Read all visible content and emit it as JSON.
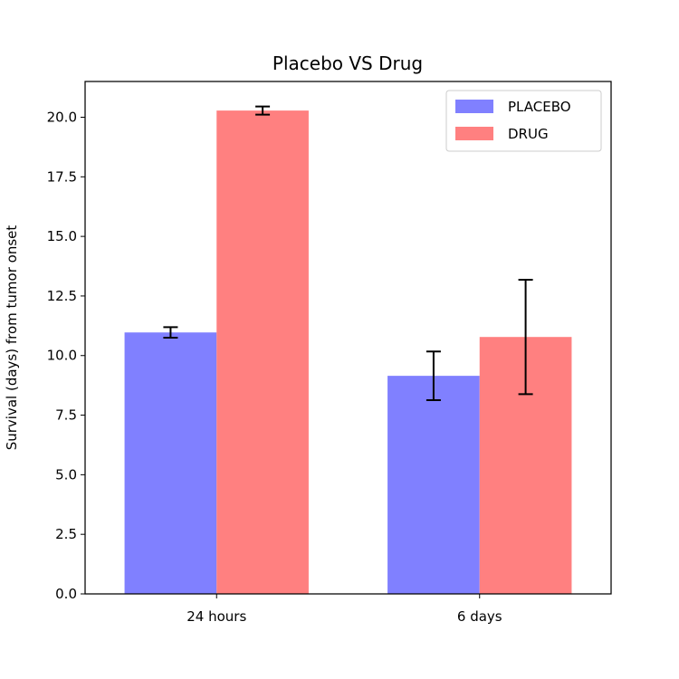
{
  "chart_data": {
    "type": "bar",
    "title": "Placebo VS Drug",
    "xlabel": "",
    "ylabel": "Survival (days) from tumor onset",
    "categories": [
      "24 hours",
      "6 days"
    ],
    "series": [
      {
        "name": "PLACEBO",
        "color": "#8080ff",
        "values": [
          10.97,
          9.15
        ],
        "errors": [
          0.22,
          1.02
        ]
      },
      {
        "name": "DRUG",
        "color": "#ff8080",
        "values": [
          20.28,
          10.78
        ],
        "errors": [
          0.17,
          2.4
        ]
      }
    ],
    "ylim": [
      0,
      21.5
    ],
    "yticks": [
      "0.0",
      "2.5",
      "5.0",
      "7.5",
      "10.0",
      "12.5",
      "15.0",
      "17.5",
      "20.0"
    ],
    "grid": false,
    "legend_position": "top-right"
  }
}
